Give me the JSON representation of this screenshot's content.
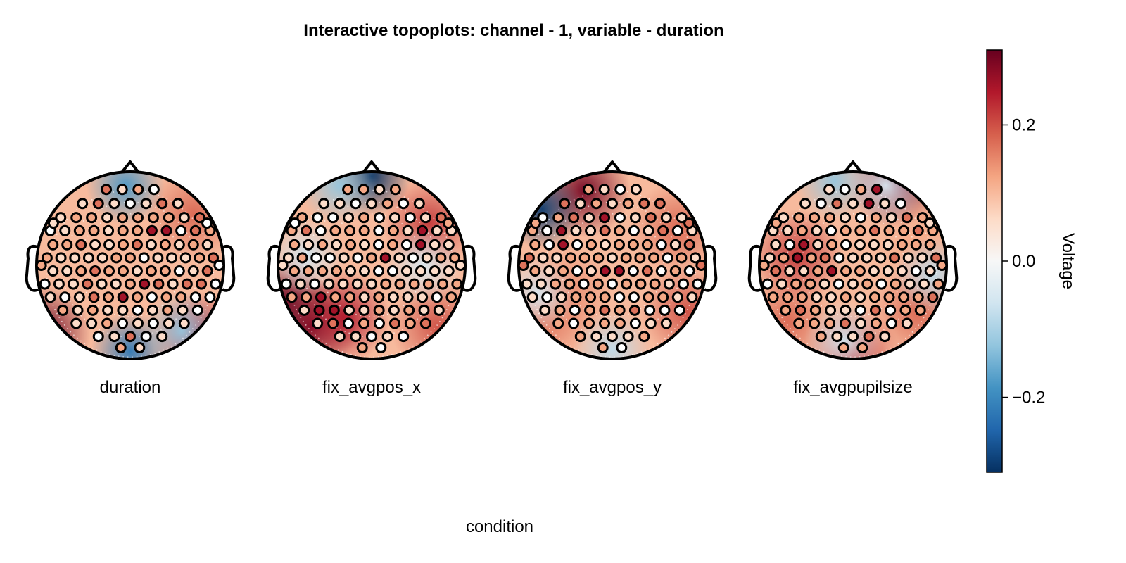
{
  "chart_data": {
    "type": "heatmap",
    "title": "Interactive topoplots: channel - 1, variable - duration",
    "xlabel": "condition",
    "panels": [
      {
        "label": "duration",
        "hot": [
          [
            -0.92,
            0.72,
            0.32
          ],
          [
            0.68,
            -0.55,
            0.18
          ],
          [
            0.75,
            0.78,
            0.26
          ]
        ],
        "cold": [
          [
            0.0,
            0.92,
            -0.22
          ],
          [
            -0.05,
            -0.85,
            -0.18
          ],
          [
            0.55,
            0.7,
            -0.12
          ]
        ],
        "redElectrodes": [
          [
            0.35,
            -0.35
          ],
          [
            0.18,
            -0.42
          ],
          [
            0.22,
            0.25
          ],
          [
            -0.1,
            0.32
          ]
        ]
      },
      {
        "label": "fix_avgpos_x",
        "hot": [
          [
            -0.95,
            0.4,
            0.33
          ],
          [
            -0.65,
            0.65,
            0.3
          ],
          [
            0.62,
            -0.45,
            0.22
          ],
          [
            0.7,
            0.65,
            0.2
          ],
          [
            -0.3,
            0.55,
            0.25
          ]
        ],
        "cold": [
          [
            0.0,
            -0.95,
            -0.32
          ],
          [
            -0.7,
            -0.1,
            -0.06
          ],
          [
            0.55,
            0.0,
            -0.05
          ],
          [
            -0.35,
            -0.85,
            -0.12
          ]
        ],
        "redElectrodes": [
          [
            -0.55,
            0.35
          ],
          [
            -0.4,
            0.52
          ],
          [
            0.55,
            -0.3
          ],
          [
            0.1,
            -0.05
          ],
          [
            -0.6,
            0.45
          ]
        ]
      },
      {
        "label": "fix_avgpos_y",
        "hot": [
          [
            -0.3,
            -0.8,
            0.3
          ],
          [
            0.7,
            -0.4,
            0.18
          ],
          [
            0.8,
            0.5,
            0.2
          ],
          [
            -0.75,
            0.6,
            0.17
          ],
          [
            -0.5,
            0.3,
            0.15
          ]
        ],
        "cold": [
          [
            -0.75,
            -0.6,
            -0.3
          ],
          [
            0.0,
            0.9,
            -0.08
          ],
          [
            -0.8,
            0.3,
            -0.05
          ]
        ],
        "redElectrodes": [
          [
            -0.35,
            -0.78
          ],
          [
            -0.15,
            -0.58
          ],
          [
            0.0,
            0.0
          ],
          [
            -0.5,
            -0.3
          ]
        ]
      },
      {
        "label": "fix_avgpupilsize",
        "hot": [
          [
            0.45,
            -0.9,
            0.42
          ],
          [
            -0.6,
            -0.1,
            0.22
          ],
          [
            0.0,
            0.95,
            0.22
          ],
          [
            -0.7,
            0.6,
            0.18
          ],
          [
            0.7,
            0.5,
            0.18
          ],
          [
            0.75,
            -0.2,
            0.12
          ]
        ],
        "cold": [
          [
            -0.2,
            -0.9,
            -0.12
          ],
          [
            0.85,
            0.1,
            -0.08
          ],
          [
            -0.1,
            0.8,
            -0.06
          ],
          [
            0.35,
            -0.85,
            -0.05
          ]
        ],
        "redElectrodes": [
          [
            -0.55,
            -0.15
          ],
          [
            0.2,
            -0.85
          ],
          [
            0.25,
            -0.6
          ],
          [
            -0.2,
            0.0
          ]
        ]
      }
    ],
    "colorbar": {
      "label": "Voltage",
      "range": [
        -0.31,
        0.31
      ],
      "ticks": [
        0.2,
        0.0,
        -0.2
      ],
      "tick_labels": [
        "0.2",
        "0.0",
        "−0.2"
      ],
      "colormap": [
        "#053061",
        "#2166ac",
        "#4393c3",
        "#92c5de",
        "#d1e5f0",
        "#f7f7f7",
        "#fddbc7",
        "#f4a582",
        "#d6604d",
        "#b2182b",
        "#67001f"
      ]
    },
    "grid": false,
    "legend": "none"
  }
}
